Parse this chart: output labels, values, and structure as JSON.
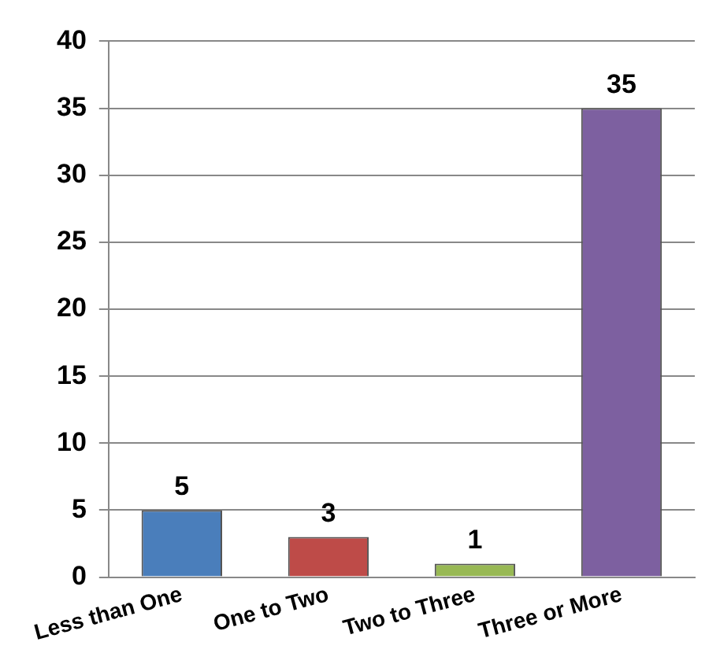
{
  "chart_data": {
    "type": "bar",
    "categories": [
      "Less than One",
      "One to Two",
      "Two to Three",
      "Three or More"
    ],
    "values": [
      5,
      3,
      1,
      35
    ],
    "colors": [
      "#4a7ebb",
      "#be4b48",
      "#98b954",
      "#7d60a0"
    ],
    "ylim": [
      0,
      40
    ],
    "yticks": [
      0,
      5,
      10,
      15,
      20,
      25,
      30,
      35,
      40
    ],
    "grid": "y",
    "data_labels": true,
    "legend": false
  }
}
